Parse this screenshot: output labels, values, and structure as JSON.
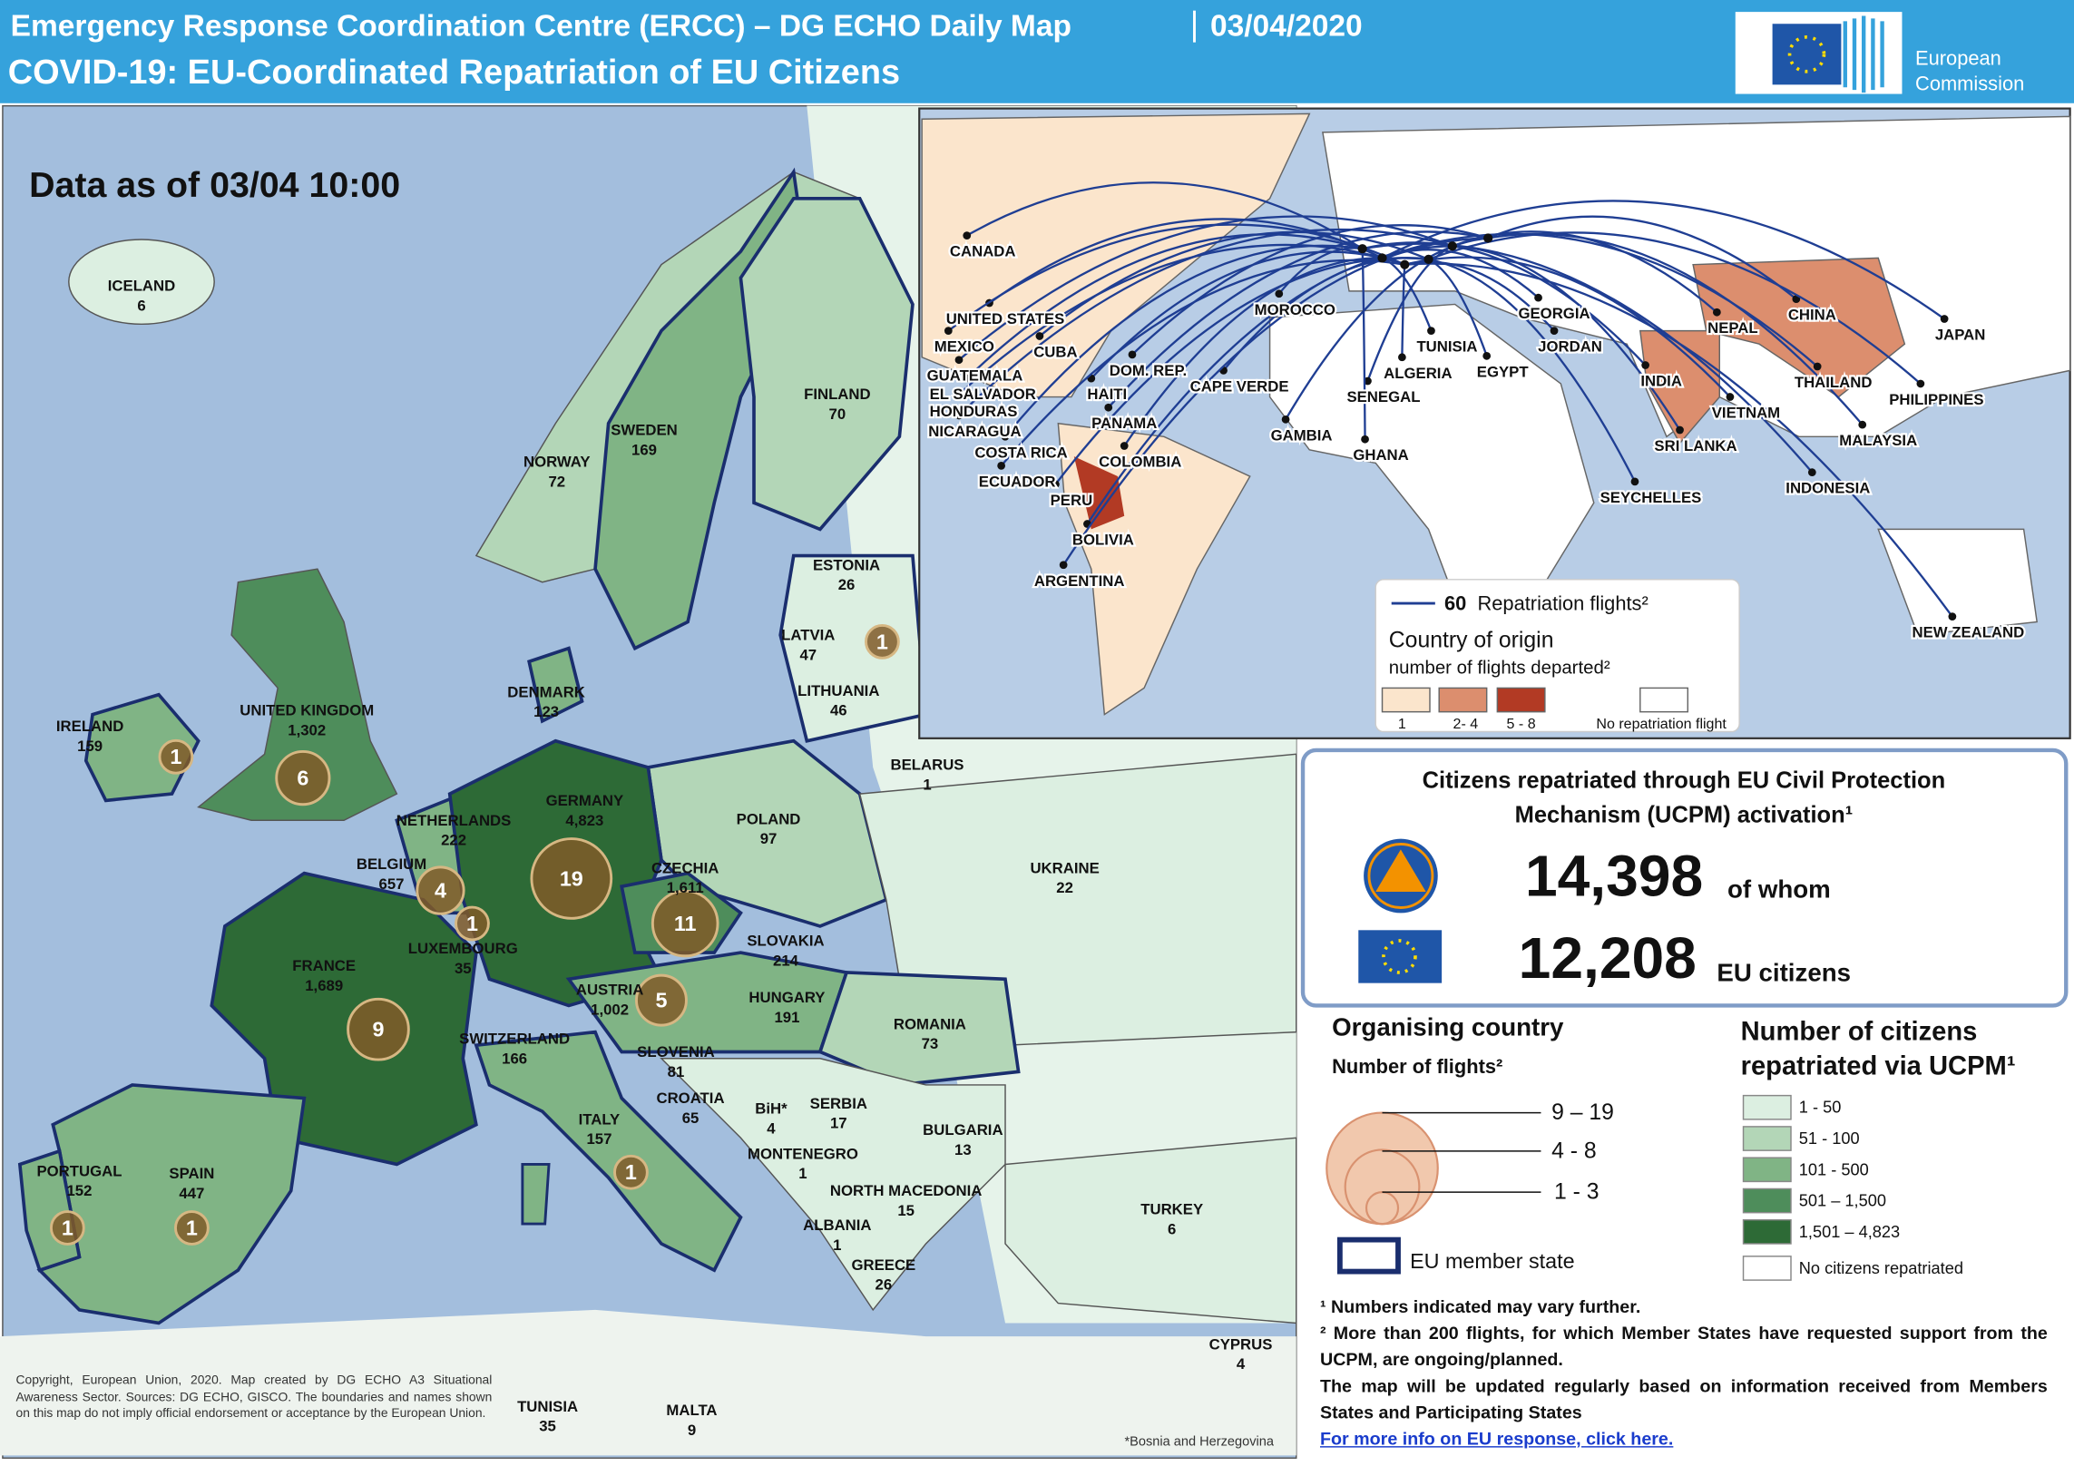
{
  "header": {
    "title": "Emergency Response Coordination  Centre (ERCC) – DG ECHO Daily Map",
    "date": "03/04/2020",
    "subtitle": "COVID-19: EU-Coordinated Repatriation of EU Citizens",
    "logo_text": [
      "European",
      "Commission"
    ]
  },
  "europe_map": {
    "data_as_of": "Data as of 03/04 10:00",
    "countries": [
      {
        "name": "ICELAND",
        "citizens": "6"
      },
      {
        "name": "IRELAND",
        "citizens": "159",
        "flights": 1
      },
      {
        "name": "UNITED KINGDOM",
        "citizens": "1,302",
        "flights": 6
      },
      {
        "name": "NORWAY",
        "citizens": "72"
      },
      {
        "name": "SWEDEN",
        "citizens": "169"
      },
      {
        "name": "FINLAND",
        "citizens": "70"
      },
      {
        "name": "ESTONIA",
        "citizens": "26"
      },
      {
        "name": "LATVIA",
        "citizens": "47",
        "flights": 1
      },
      {
        "name": "LITHUANIA",
        "citizens": "46"
      },
      {
        "name": "DENMARK",
        "citizens": "123"
      },
      {
        "name": "BELARUS",
        "citizens": "1"
      },
      {
        "name": "NETHERLANDS",
        "citizens": "222"
      },
      {
        "name": "GERMANY",
        "citizens": "4,823",
        "flights": 19
      },
      {
        "name": "POLAND",
        "citizens": "97"
      },
      {
        "name": "BELGIUM",
        "citizens": "657",
        "flights": 4
      },
      {
        "name": "LUXEMBOURG",
        "citizens": "35",
        "flights": 1
      },
      {
        "name": "CZECHIA",
        "citizens": "1,611",
        "flights": 11
      },
      {
        "name": "UKRAINE",
        "citizens": "22"
      },
      {
        "name": "FRANCE",
        "citizens": "1,689",
        "flights": 9
      },
      {
        "name": "SLOVAKIA",
        "citizens": "214"
      },
      {
        "name": "AUSTRIA",
        "citizens": "1,002",
        "flights": 5
      },
      {
        "name": "HUNGARY",
        "citizens": "191"
      },
      {
        "name": "ROMANIA",
        "citizens": "73"
      },
      {
        "name": "SWITZERLAND",
        "citizens": "166"
      },
      {
        "name": "SLOVENIA",
        "citizens": "81"
      },
      {
        "name": "CROATIA",
        "citizens": "65"
      },
      {
        "name": "BiH*",
        "citizens": "4"
      },
      {
        "name": "SERBIA",
        "citizens": "17"
      },
      {
        "name": "ITALY",
        "citizens": "157",
        "flights": 1
      },
      {
        "name": "BULGARIA",
        "citizens": "13"
      },
      {
        "name": "MONTENEGRO",
        "citizens": "1"
      },
      {
        "name": "PORTUGAL",
        "citizens": "152",
        "flights": 1
      },
      {
        "name": "SPAIN",
        "citizens": "447",
        "flights": 1
      },
      {
        "name": "NORTH MACEDONIA",
        "citizens": "15"
      },
      {
        "name": "ALBANIA",
        "citizens": "1"
      },
      {
        "name": "TURKEY",
        "citizens": "6"
      },
      {
        "name": "GREECE",
        "citizens": "26"
      },
      {
        "name": "CYPRUS",
        "citizens": "4"
      },
      {
        "name": "TUNISIA",
        "citizens": "35"
      },
      {
        "name": "MALTA",
        "citizens": "9"
      }
    ],
    "copyright": "Copyright, European Union, 2020. Map created by DG ECHO A3 Situational Awareness Sector. Sources: DG ECHO, GISCO. The boundaries and names shown on this map do not imply official endorsement or acceptance by the European Union.",
    "footnote": "*Bosnia and Herzegovina"
  },
  "world_map": {
    "countries": [
      "CANADA",
      "UNITED STATES",
      "MEXICO",
      "CUBA",
      "GUATEMALA",
      "DOM. REP.",
      "EL SALVADOR",
      "HAITI",
      "HONDURAS",
      "CAPE VERDE",
      "NICARAGUA",
      "PANAMA",
      "COSTA RICA",
      "COLOMBIA",
      "ECUADOR",
      "PERU",
      "BOLIVIA",
      "ARGENTINA",
      "MOROCCO",
      "TUNISIA",
      "ALGERIA",
      "EGYPT",
      "SENEGAL",
      "GAMBIA",
      "GHANA",
      "GEORGIA",
      "JORDAN",
      "SEYCHELLES",
      "NEPAL",
      "CHINA",
      "INDIA",
      "THAILAND",
      "VIETNAM",
      "PHILIPPINES",
      "SRI LANKA",
      "MALAYSIA",
      "INDONESIA",
      "JAPAN",
      "NEW ZEALAND"
    ],
    "legend": {
      "flights": 60,
      "flights_label": "Repatriation flights²",
      "title": "Country of origin",
      "subtitle": "number of flights departed²",
      "items": [
        "1",
        "2- 4",
        "5 - 8",
        "No repatriation  flight"
      ]
    }
  },
  "ucpm": {
    "title_lines": [
      "Citizens repatriated through EU Civil Protection",
      "Mechanism (UCPM) activation¹"
    ],
    "total": "14,398",
    "total_suffix": "of whom",
    "eu": "12,208",
    "eu_suffix": "EU citizens"
  },
  "organising_legend": {
    "title": "Organising country",
    "subtitle": "Number of flights²",
    "sizes": [
      "9 – 19",
      "4 - 8",
      "1 - 3"
    ],
    "eu_member": "EU member state"
  },
  "citizens_legend": {
    "title_lines": [
      "Number of citizens",
      "repatriated via UCPM¹"
    ],
    "items": [
      "1 - 50",
      "51 - 100",
      "101 - 500",
      "501 – 1,500",
      "1,501 – 4,823",
      "No  citizens repatriated"
    ]
  },
  "notes": [
    "¹ Numbers indicated may vary further.",
    "² More than 200 flights, for which Member States have requested support from the UCPM, are ongoing/planned.",
    "The map will be updated regularly based on information received from Members States and Participating States"
  ],
  "link": "For more info on EU response, click here."
}
